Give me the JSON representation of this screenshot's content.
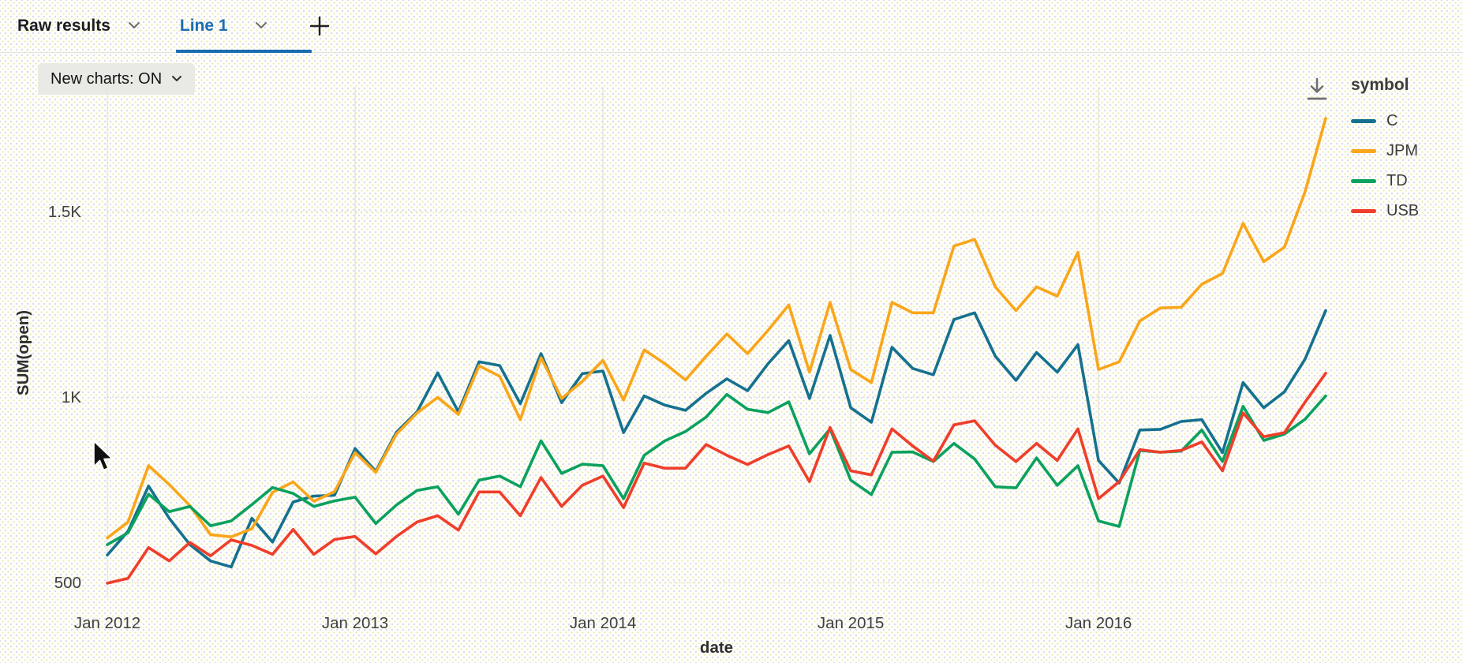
{
  "tab_bar": {
    "tabs": [
      {
        "label": "Raw results",
        "active": false
      },
      {
        "label": "Line 1",
        "active": true
      }
    ],
    "add_tab_label": "+"
  },
  "toolbar": {
    "new_charts_label": "New charts: ON"
  },
  "colors": {
    "accent_tab": "#1a6db0",
    "grid_vertical": "#e4e4e2",
    "grid_horizontal": "#d8d8d4",
    "axis_text": "#404040",
    "axis_title": "#2e2e2e",
    "icon_gray": "#707070"
  },
  "icons": {
    "chevron_down": "chevron-down-icon",
    "plus": "plus-icon",
    "download": "download-icon",
    "mouse_cursor": "arrow-cursor"
  },
  "legend": {
    "title": "symbol",
    "items": [
      {
        "label": "C",
        "color": "#15718f"
      },
      {
        "label": "JPM",
        "color": "#f9a61a"
      },
      {
        "label": "TD",
        "color": "#0ba15e"
      },
      {
        "label": "USB",
        "color": "#ef3e2b"
      }
    ]
  },
  "chart_data": {
    "type": "line",
    "x_unit": "month",
    "x_range": [
      "Jan 2012",
      "Dec 2016"
    ],
    "xlabel": "date",
    "ylabel": "SUM(open)",
    "ylim": [
      450,
      1850
    ],
    "yticks": [
      {
        "value": 500,
        "label": "500"
      },
      {
        "value": 1000,
        "label": "1K"
      },
      {
        "value": 1500,
        "label": "1.5K"
      }
    ],
    "xticks": [
      {
        "month_index": 0,
        "label": "Jan 2012"
      },
      {
        "month_index": 12,
        "label": "Jan 2013"
      },
      {
        "month_index": 24,
        "label": "Jan 2014"
      },
      {
        "month_index": 36,
        "label": "Jan 2015"
      },
      {
        "month_index": 48,
        "label": "Jan 2016"
      }
    ],
    "grid": {
      "vertical": "solid",
      "horizontal": "dotted"
    },
    "legend_position": "right",
    "series": [
      {
        "name": "C",
        "color": "#15718f",
        "values": [
          574,
          638,
          760,
          673,
          602,
          558,
          542,
          673,
          609,
          717,
          733,
          735,
          861,
          800,
          905,
          960,
          1065,
          960,
          1095,
          1085,
          982,
          1117,
          985,
          1063,
          1070,
          904,
          1003,
          978,
          964,
          1010,
          1049,
          1017,
          1090,
          1152,
          996,
          1166,
          971,
          932,
          1134,
          1077,
          1060,
          1209,
          1227,
          1110,
          1045,
          1120,
          1067,
          1141,
          829,
          768,
          911,
          913,
          934,
          939,
          850,
          1039,
          971,
          1014,
          1102,
          1233
        ]
      },
      {
        "name": "JPM",
        "color": "#f9a61a",
        "values": [
          620,
          663,
          815,
          764,
          707,
          629,
          623,
          645,
          743,
          771,
          719,
          745,
          850,
          797,
          900,
          957,
          999,
          953,
          1084,
          1056,
          939,
          1106,
          996,
          1042,
          1099,
          992,
          1127,
          1090,
          1046,
          1110,
          1170,
          1117,
          1180,
          1248,
          1067,
          1255,
          1074,
          1039,
          1255,
          1227,
          1227,
          1407,
          1425,
          1297,
          1233,
          1297,
          1272,
          1390,
          1074,
          1095,
          1205,
          1240,
          1242,
          1304,
          1333,
          1468,
          1365,
          1404,
          1553,
          1751
        ]
      },
      {
        "name": "TD",
        "color": "#0ba15e",
        "values": [
          602,
          634,
          738,
          691,
          705,
          653,
          666,
          710,
          756,
          740,
          705,
          720,
          730,
          659,
          709,
          748,
          758,
          684,
          776,
          787,
          758,
          882,
          794,
          819,
          815,
          726,
          843,
          882,
          907,
          946,
          1007,
          967,
          958,
          987,
          847,
          914,
          776,
          737,
          851,
          852,
          826,
          875,
          833,
          758,
          755,
          836,
          762,
          815,
          666,
          651,
          856,
          851,
          854,
          911,
          826,
          975,
          883,
          900,
          940,
          1003
        ]
      },
      {
        "name": "USB",
        "color": "#ef3e2b",
        "values": [
          498,
          511,
          594,
          558,
          608,
          572,
          615,
          600,
          576,
          643,
          576,
          616,
          624,
          577,
          624,
          663,
          680,
          641,
          744,
          744,
          680,
          783,
          705,
          762,
          787,
          702,
          822,
          808,
          808,
          872,
          843,
          818,
          845,
          868,
          772,
          918,
          801,
          790,
          914,
          868,
          827,
          925,
          936,
          870,
          826,
          875,
          829,
          914,
          726,
          772,
          858,
          851,
          856,
          879,
          801,
          957,
          893,
          904,
          986,
          1064
        ]
      }
    ]
  }
}
